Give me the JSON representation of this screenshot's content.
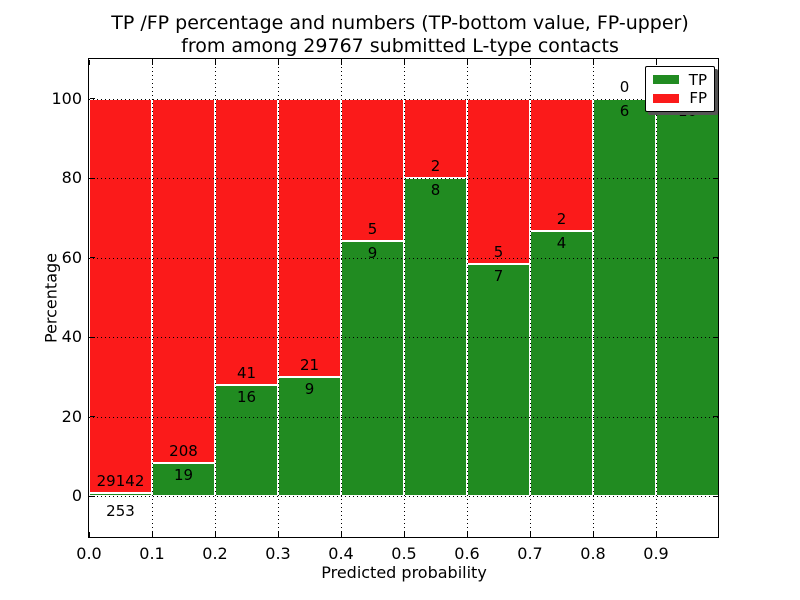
{
  "title": {
    "line1": "TP /FP percentage and numbers (TP-bottom value, FP-upper)",
    "line2": "from among 29767 submitted L-type contacts"
  },
  "colors": {
    "tp": "#218b21",
    "fp": "#fb1a1a",
    "bar_edge": "#ffffff",
    "grid": "#000000",
    "text": "#000000",
    "legend_shadow": "#555555"
  },
  "legend": {
    "items": [
      {
        "label": "TP",
        "color_key": "tp"
      },
      {
        "label": "FP",
        "color_key": "fp"
      }
    ]
  },
  "chart_data": {
    "type": "bar",
    "stacked": true,
    "title": "TP /FP percentage and numbers (TP-bottom value, FP-upper) from among 29767 submitted L-type contacts",
    "xlabel": "Predicted probability",
    "ylabel": "Percentage",
    "total_contacts": 29767,
    "grid": true,
    "legend_position": "upper right",
    "xlim": [
      0.0,
      1.0
    ],
    "ylim": [
      -10.5,
      110.0
    ],
    "yticks": [
      0,
      20,
      40,
      60,
      80,
      100
    ],
    "xticks": [
      "0.0",
      "0.1",
      "0.2",
      "0.3",
      "0.4",
      "0.5",
      "0.6",
      "0.7",
      "0.8",
      "0.9"
    ],
    "x_bins": [
      {
        "start": 0.0,
        "end": 0.1,
        "tp": 253,
        "fp": 29142,
        "tp_pct": 0.86
      },
      {
        "start": 0.1,
        "end": 0.2,
        "tp": 19,
        "fp": 208,
        "tp_pct": 8.37
      },
      {
        "start": 0.2,
        "end": 0.3,
        "tp": 16,
        "fp": 41,
        "tp_pct": 28.07
      },
      {
        "start": 0.3,
        "end": 0.4,
        "tp": 9,
        "fp": 21,
        "tp_pct": 30.0
      },
      {
        "start": 0.4,
        "end": 0.5,
        "tp": 9,
        "fp": 5,
        "tp_pct": 64.29
      },
      {
        "start": 0.5,
        "end": 0.6,
        "tp": 8,
        "fp": 2,
        "tp_pct": 80.0
      },
      {
        "start": 0.6,
        "end": 0.7,
        "tp": 7,
        "fp": 5,
        "tp_pct": 58.33
      },
      {
        "start": 0.7,
        "end": 0.8,
        "tp": 4,
        "fp": 2,
        "tp_pct": 66.67
      },
      {
        "start": 0.8,
        "end": 0.9,
        "tp": 6,
        "fp": 0,
        "tp_pct": 100.0
      },
      {
        "start": 0.9,
        "end": 1.0,
        "tp": 10,
        "fp": 0,
        "tp_pct": 100.0
      }
    ],
    "series": [
      {
        "name": "TP",
        "values": [
          253,
          19,
          16,
          9,
          9,
          8,
          7,
          4,
          6,
          10
        ]
      },
      {
        "name": "FP",
        "values": [
          29142,
          208,
          41,
          21,
          5,
          2,
          5,
          2,
          0,
          0
        ]
      }
    ]
  }
}
